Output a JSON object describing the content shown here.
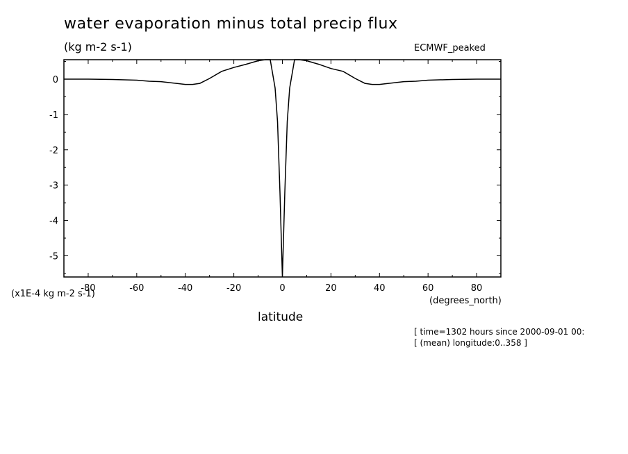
{
  "title": "water evaporation minus total precip flux",
  "subtitle": "(kg m-2 s-1)",
  "dataset": "ECMWF_peaked",
  "y_units_label": "(x1E-4 kg m-2 s-1)",
  "x_units_label": "(degrees_north)",
  "xlabel": "latitude",
  "meta": [
    "[ time=1302 hours since 2000-09-01 00:",
    "[ (mean) longitude:0..358 ]"
  ],
  "chart_data": {
    "type": "line",
    "xlim": [
      -90,
      90
    ],
    "ylim": [
      -5.6,
      0.55
    ],
    "xticks": [
      -80,
      -60,
      -40,
      -20,
      0,
      20,
      40,
      60,
      80
    ],
    "xtick_labels": [
      "-80",
      "-60",
      "-40",
      "-20",
      "0",
      "20",
      "40",
      "60",
      "80"
    ],
    "yticks": [
      0,
      -1,
      -2,
      -3,
      -4,
      -5
    ],
    "ytick_labels": [
      "0",
      "-1",
      "-2",
      "-3",
      "-4",
      "-5"
    ],
    "grid": false,
    "series": [
      {
        "x": [
          -90,
          -80,
          -70,
          -60,
          -55,
          -50,
          -45,
          -40,
          -37,
          -34,
          -30,
          -25,
          -20,
          -15,
          -10,
          -7,
          -5,
          -3,
          -2,
          -1,
          0,
          1,
          2,
          3,
          5,
          7,
          10,
          15,
          20,
          25,
          30,
          34,
          37,
          40,
          45,
          50,
          55,
          60,
          70,
          80,
          90
        ],
        "y": [
          0,
          0,
          -0.01,
          -0.03,
          -0.06,
          -0.07,
          -0.11,
          -0.15,
          -0.15,
          -0.12,
          0.02,
          0.22,
          0.33,
          0.42,
          0.52,
          0.55,
          0.55,
          -0.25,
          -1.2,
          -3.2,
          -5.6,
          -3.2,
          -1.2,
          -0.25,
          0.55,
          0.55,
          0.52,
          0.42,
          0.3,
          0.22,
          0.02,
          -0.12,
          -0.15,
          -0.15,
          -0.11,
          -0.07,
          -0.06,
          -0.03,
          -0.01,
          0,
          0
        ]
      }
    ]
  }
}
